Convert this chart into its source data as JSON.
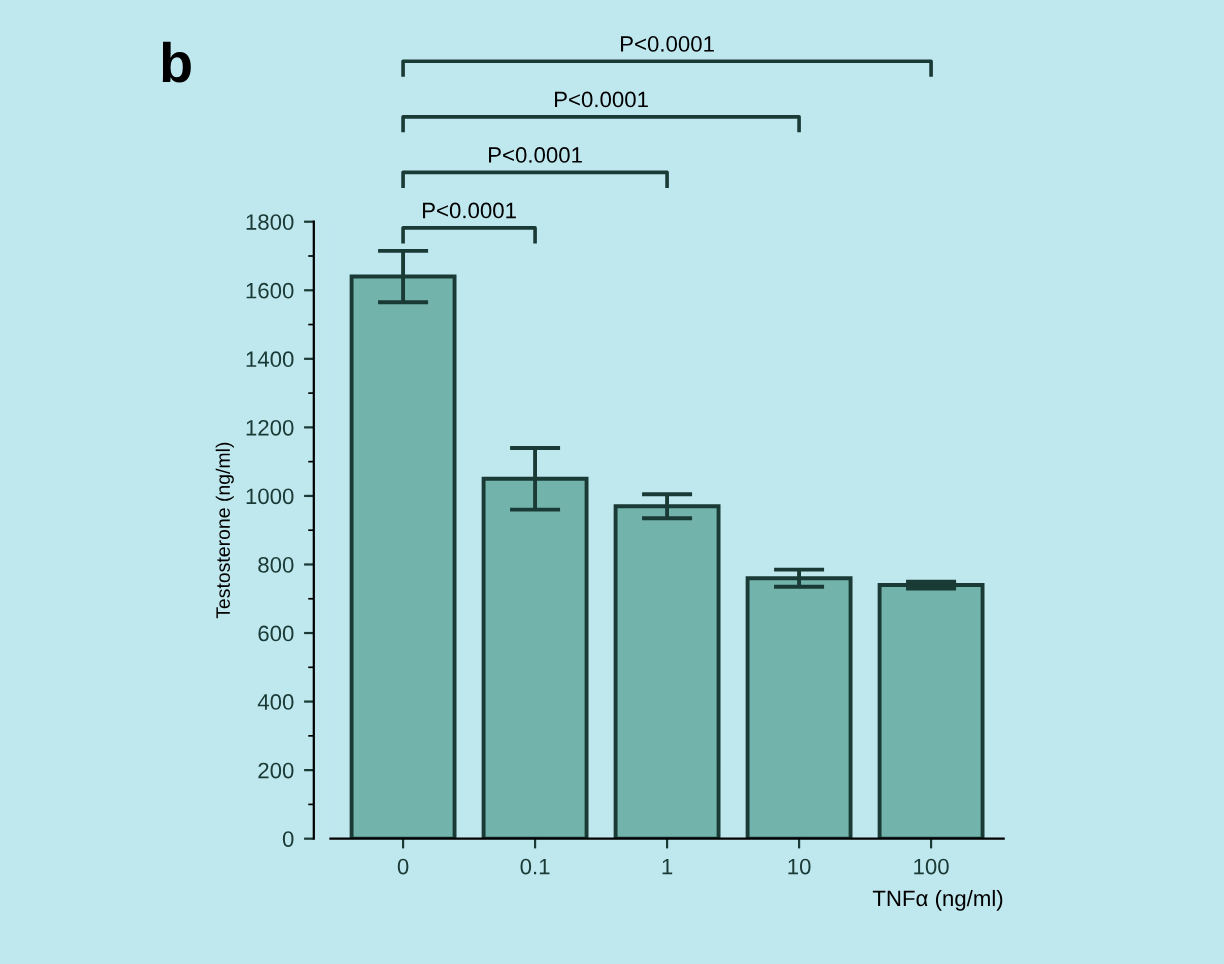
{
  "chart_data": {
    "type": "bar",
    "title": "b",
    "xlabel": "TNFα (ng/ml)",
    "ylabel": "Testosterone (ng/ml)",
    "categories": [
      "0",
      "0.1",
      "1",
      "10",
      "100"
    ],
    "values": [
      1640,
      1050,
      970,
      760,
      740
    ],
    "errors": [
      75,
      90,
      35,
      25,
      10
    ],
    "color": "#72b4ab",
    "ylim": [
      0,
      1800
    ],
    "yticks": [
      0,
      200,
      400,
      600,
      800,
      1000,
      1200,
      1400,
      1600,
      1800
    ],
    "annotations": [
      "P<0.0001",
      "P<0.0001",
      "P<0.0001",
      "P<0.0001"
    ],
    "grid": false,
    "legend": false
  }
}
